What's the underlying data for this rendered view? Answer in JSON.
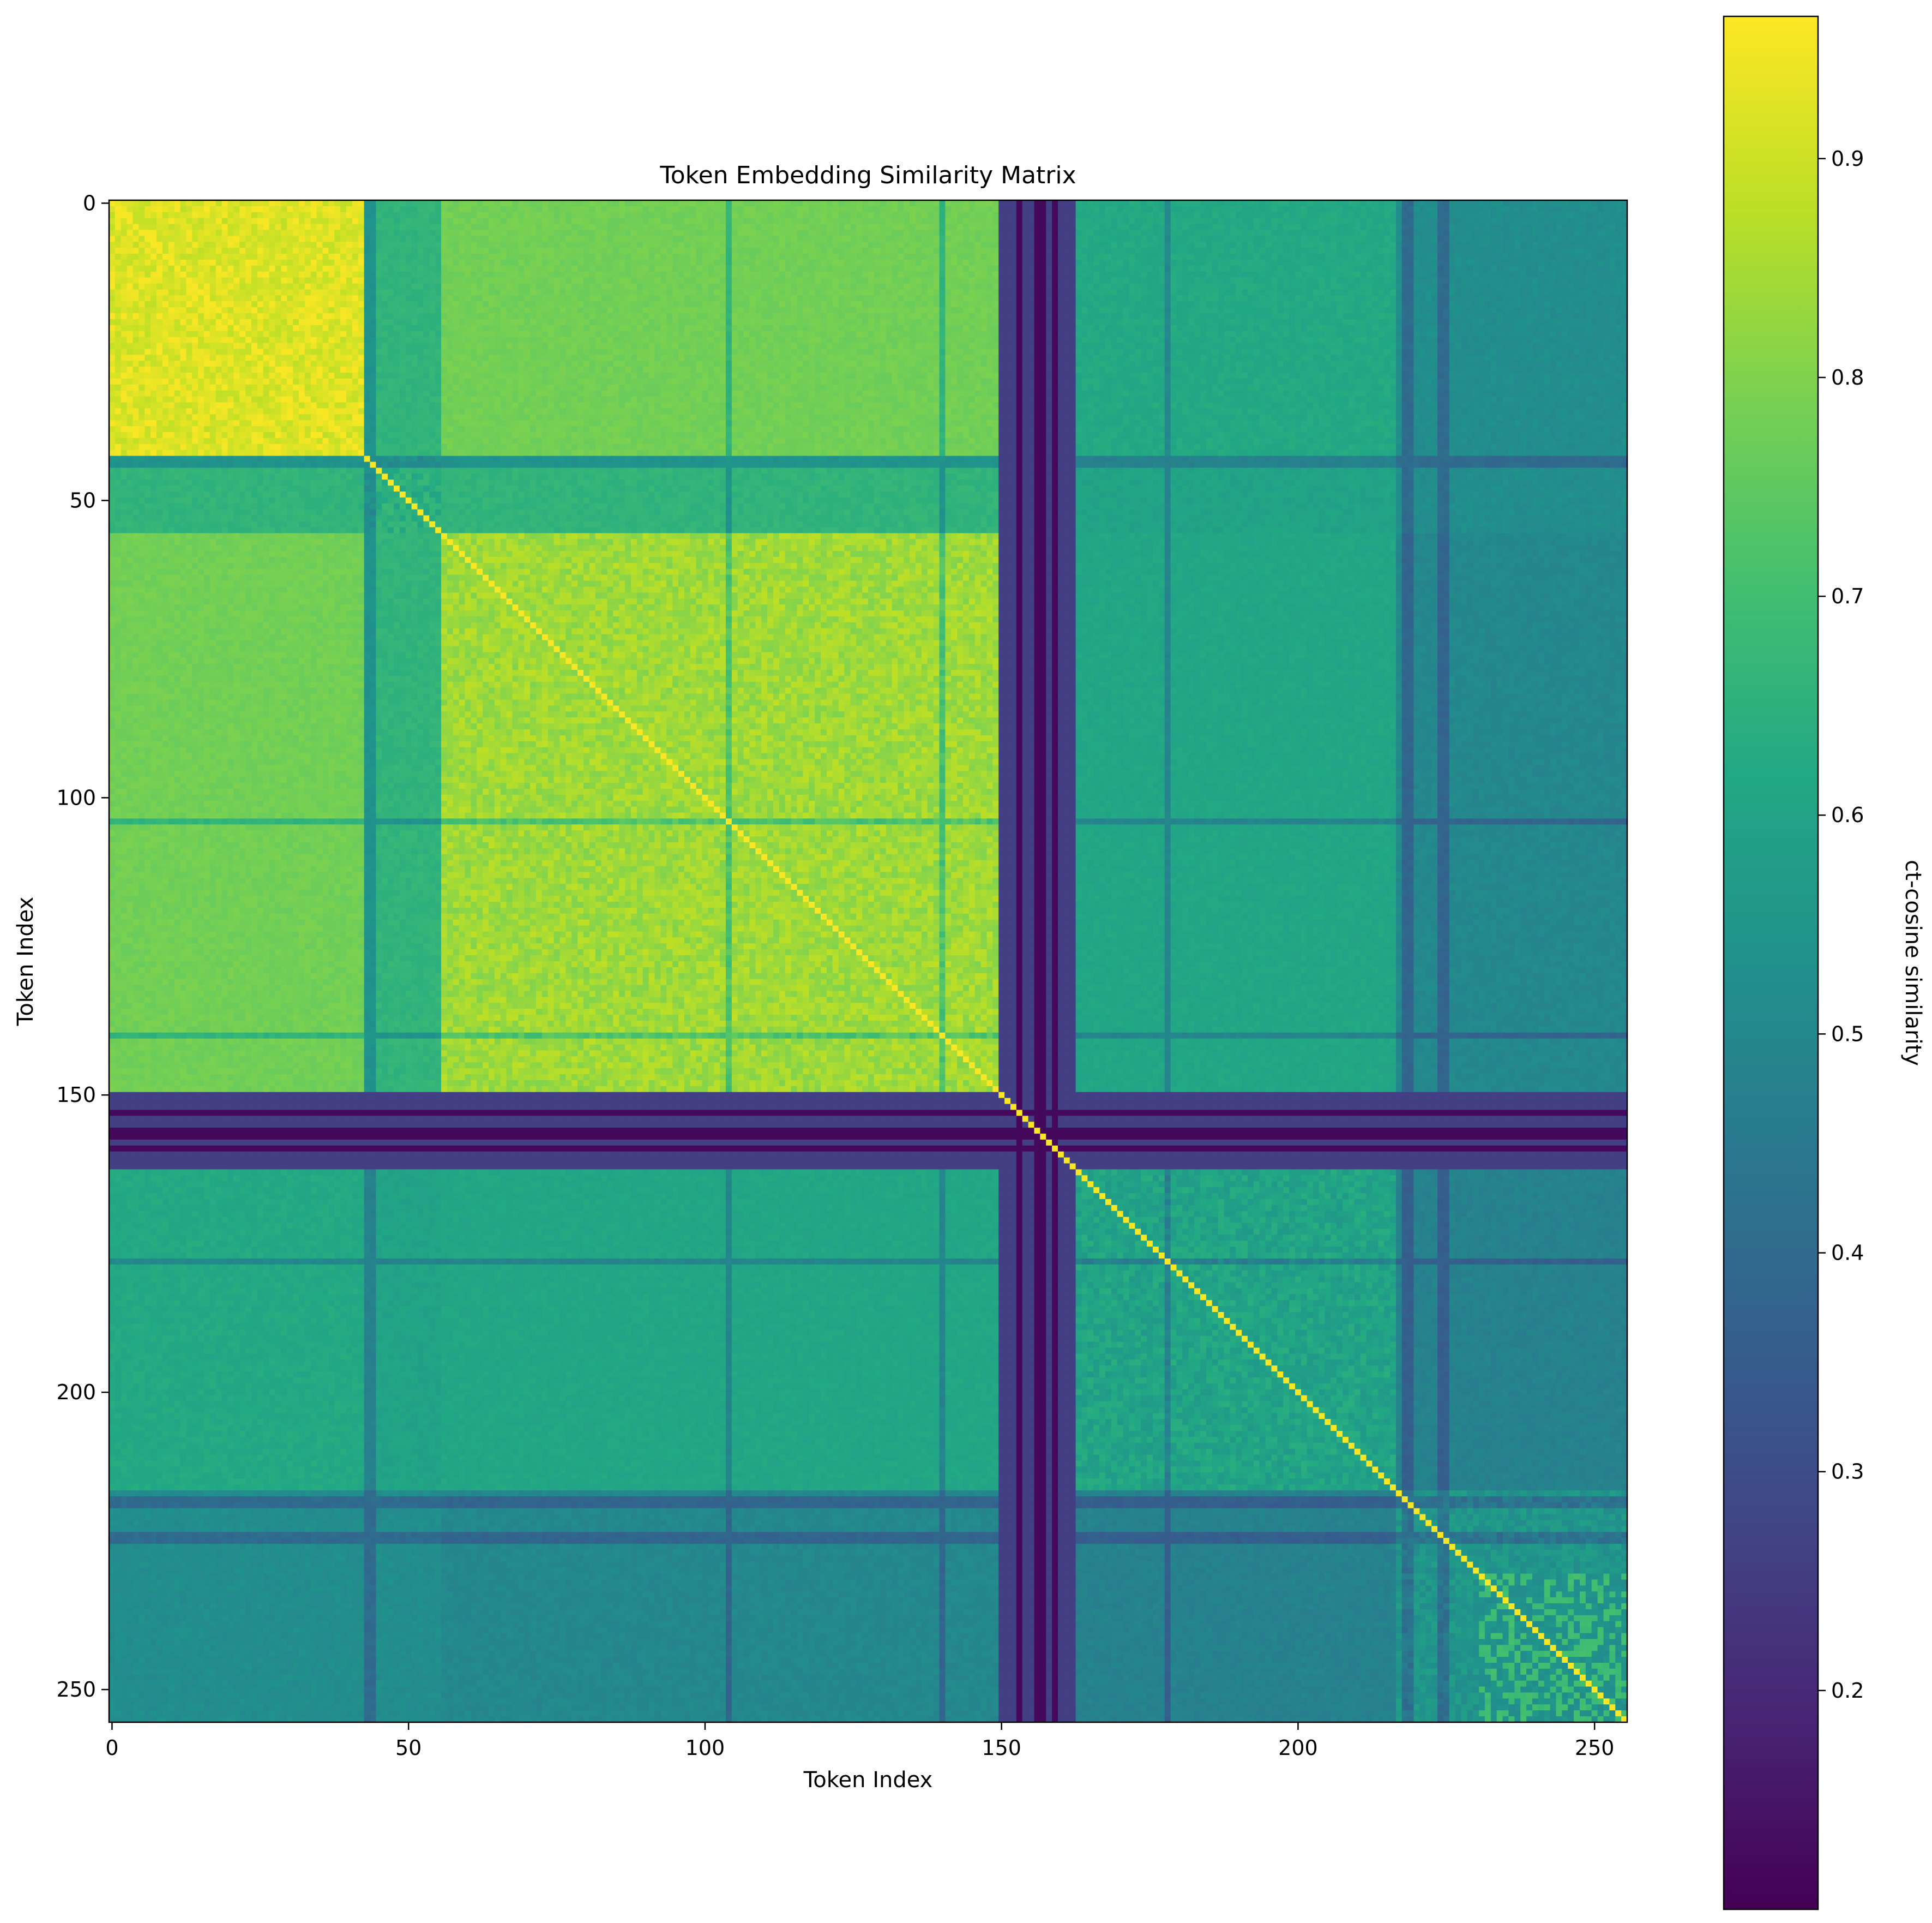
{
  "chart_data": {
    "type": "heatmap",
    "title": "Token Embedding Similarity Matrix",
    "xlabel": "Token Index",
    "ylabel": "Token Index",
    "matrix_size": 256,
    "x_ticks": [
      0,
      50,
      100,
      150,
      200,
      250
    ],
    "y_ticks": [
      0,
      50,
      100,
      150,
      200,
      250
    ],
    "xlim": [
      -0.5,
      255.5
    ],
    "ylim": [
      255.5,
      -0.5
    ],
    "colormap": "viridis",
    "colorbar": {
      "label": "ct-cosine similarity",
      "range": [
        0.1,
        0.965
      ],
      "ticks": [
        0.2,
        0.3,
        0.4,
        0.5,
        0.6,
        0.7,
        0.8,
        0.9
      ]
    },
    "diagonal_value": 0.96,
    "block_structure": [
      {
        "rows": [
          0,
          42
        ],
        "cols": [
          0,
          42
        ],
        "value": 0.93
      },
      {
        "rows": [
          43,
          54
        ],
        "cols": [
          43,
          54
        ],
        "value": 0.64
      },
      {
        "rows": [
          56,
          149
        ],
        "cols": [
          56,
          149
        ],
        "value": 0.85
      },
      {
        "rows": [
          150,
          162
        ],
        "cols": [
          0,
          255
        ],
        "value": 0.26
      },
      {
        "rows": [
          163,
          216
        ],
        "cols": [
          163,
          216
        ],
        "value": 0.62
      },
      {
        "rows": [
          217,
          255
        ],
        "cols": [
          217,
          255
        ],
        "value": 0.55
      }
    ],
    "colors": {
      "viridis_low": "#440154",
      "viridis_mid": "#21918c",
      "viridis_high": "#fde725"
    }
  }
}
